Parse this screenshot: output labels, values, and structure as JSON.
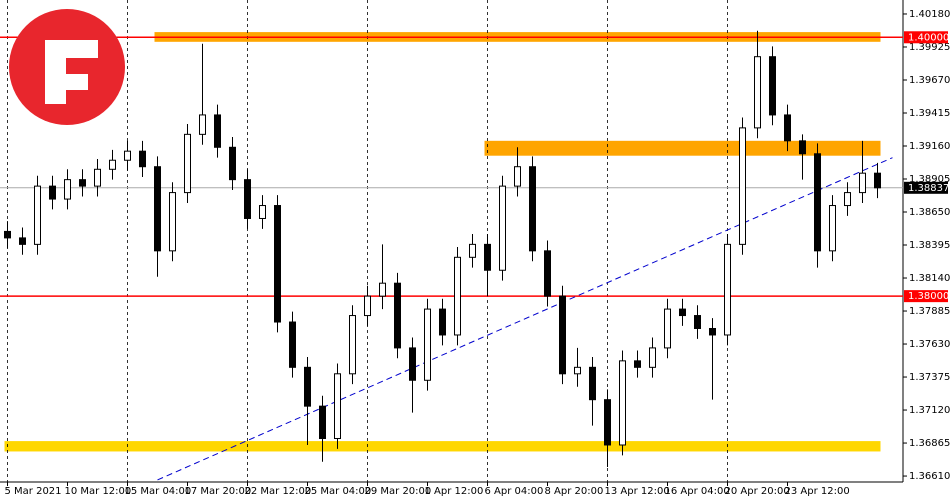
{
  "chart_data": {
    "type": "candlestick",
    "categories": [
      "5 Mar 2021",
      null,
      null,
      null,
      "10 Mar 12:00",
      null,
      null,
      null,
      "15 Mar 04:00",
      null,
      null,
      null,
      "17 Mar 20:00",
      null,
      null,
      null,
      "22 Mar 12:00",
      null,
      null,
      null,
      "25 Mar 04:00",
      null,
      null,
      null,
      "29 Mar 20:00",
      null,
      null,
      null,
      "1 Apr 12:00",
      null,
      null,
      null,
      "6 Apr 04:00",
      null,
      null,
      null,
      "8 Apr 20:00",
      null,
      null,
      null,
      "13 Apr 12:00",
      null,
      null,
      null,
      "16 Apr 04:00",
      null,
      null,
      null,
      "20 Apr 20:00",
      null,
      null,
      null,
      "23 Apr 12:00",
      null,
      null,
      null,
      null,
      null,
      null
    ],
    "open": [
      1.385,
      1.3845,
      1.384,
      1.3885,
      1.3875,
      1.389,
      1.3885,
      1.3898,
      1.3905,
      1.3912,
      1.39,
      1.3835,
      1.388,
      1.3925,
      1.394,
      1.3915,
      1.389,
      1.386,
      1.387,
      1.378,
      1.3745,
      1.3715,
      1.369,
      1.374,
      1.3785,
      1.38,
      1.381,
      1.376,
      1.3735,
      1.379,
      1.377,
      1.383,
      1.384,
      1.382,
      1.3885,
      1.39,
      1.3835,
      1.38,
      1.374,
      1.3745,
      1.372,
      1.3685,
      1.375,
      1.3745,
      1.376,
      1.379,
      1.3785,
      1.3775,
      1.377,
      1.384,
      1.393,
      1.3985,
      1.394,
      1.392,
      1.391,
      1.3835,
      1.387,
      1.388,
      1.3895
    ],
    "high": [
      1.3858,
      1.3853,
      1.3893,
      1.3893,
      1.3898,
      1.3898,
      1.3906,
      1.3913,
      1.392,
      1.392,
      1.3908,
      1.3888,
      1.3933,
      1.3995,
      1.3948,
      1.3923,
      1.3898,
      1.3878,
      1.3878,
      1.3788,
      1.3753,
      1.3723,
      1.3748,
      1.3793,
      1.3808,
      1.384,
      1.3818,
      1.3768,
      1.3798,
      1.3798,
      1.3838,
      1.3848,
      1.3848,
      1.3893,
      1.3915,
      1.3908,
      1.3843,
      1.3808,
      1.376,
      1.3753,
      1.3728,
      1.3758,
      1.3758,
      1.3768,
      1.3798,
      1.3798,
      1.3793,
      1.3783,
      1.3848,
      1.3938,
      1.4005,
      1.3993,
      1.3948,
      1.3925,
      1.3918,
      1.3878,
      1.3888,
      1.392,
      1.3903
    ],
    "low": [
      1.3837,
      1.3832,
      1.3832,
      1.3867,
      1.3867,
      1.3877,
      1.3877,
      1.389,
      1.3897,
      1.3892,
      1.3815,
      1.3827,
      1.3872,
      1.3917,
      1.3907,
      1.3882,
      1.3852,
      1.3852,
      1.3772,
      1.3737,
      1.3685,
      1.3672,
      1.3682,
      1.3732,
      1.3777,
      1.379,
      1.3752,
      1.371,
      1.3727,
      1.3762,
      1.3762,
      1.3822,
      1.38,
      1.3812,
      1.3877,
      1.3827,
      1.3792,
      1.3732,
      1.373,
      1.37,
      1.3668,
      1.3677,
      1.3737,
      1.3737,
      1.3752,
      1.3777,
      1.3767,
      1.372,
      1.3762,
      1.3832,
      1.3922,
      1.3932,
      1.3912,
      1.389,
      1.3822,
      1.3827,
      1.3862,
      1.3872,
      1.38757
    ],
    "close": [
      1.3845,
      1.384,
      1.3885,
      1.3875,
      1.389,
      1.3885,
      1.3898,
      1.3905,
      1.3912,
      1.39,
      1.3835,
      1.388,
      1.3925,
      1.394,
      1.3915,
      1.389,
      1.386,
      1.387,
      1.378,
      1.3745,
      1.3715,
      1.369,
      1.374,
      1.3785,
      1.38,
      1.381,
      1.376,
      1.3735,
      1.379,
      1.377,
      1.383,
      1.384,
      1.382,
      1.3885,
      1.39,
      1.3835,
      1.38,
      1.374,
      1.3745,
      1.372,
      1.3685,
      1.375,
      1.3745,
      1.376,
      1.379,
      1.3785,
      1.3775,
      1.377,
      1.384,
      1.393,
      1.3985,
      1.394,
      1.392,
      1.391,
      1.3835,
      1.387,
      1.388,
      1.3895,
      1.38837
    ],
    "ylim": [
      1.36564,
      1.40288
    ],
    "yticks": [
      {
        "value": 1.3661,
        "label": "1.36610"
      },
      {
        "value": 1.36865,
        "label": "1.36865"
      },
      {
        "value": 1.3712,
        "label": "1.37120"
      },
      {
        "value": 1.37375,
        "label": "1.37375"
      },
      {
        "value": 1.3763,
        "label": "1.37630"
      },
      {
        "value": 1.37885,
        "label": "1.37885"
      },
      {
        "value": 1.3814,
        "label": "1.38140"
      },
      {
        "value": 1.38395,
        "label": "1.38395"
      },
      {
        "value": 1.3865,
        "label": "1.38650"
      },
      {
        "value": 1.38905,
        "label": "1.38905"
      },
      {
        "value": 1.3916,
        "label": "1.39160"
      },
      {
        "value": 1.39415,
        "label": "1.39415"
      },
      {
        "value": 1.3967,
        "label": "1.39670"
      },
      {
        "value": 1.39925,
        "label": "1.39925"
      },
      {
        "value": 1.4018,
        "label": "1.40180"
      }
    ],
    "levels": [
      {
        "value": 1.4,
        "label": "1.40000",
        "color": "#ff0000"
      },
      {
        "value": 1.38,
        "label": "1.38000",
        "color": "#ff0000"
      }
    ],
    "current_price": {
      "value": 1.38837,
      "label": "1.38837",
      "color": "#000000"
    },
    "zones": [
      {
        "from": 1.39965,
        "to": 1.4004,
        "start": 10,
        "end": 58,
        "color": "#ffa500"
      },
      {
        "from": 1.39085,
        "to": 1.392,
        "start": 32,
        "end": 58,
        "color": "#ffa500"
      },
      {
        "from": 1.368,
        "to": 1.3688,
        "start": 0,
        "end": 58,
        "color": "#ffd700"
      }
    ],
    "trendline": {
      "from": [
        10,
        1.3658
      ],
      "to": [
        59,
        1.3907
      ],
      "color": "#0000cd"
    },
    "grid": true
  }
}
